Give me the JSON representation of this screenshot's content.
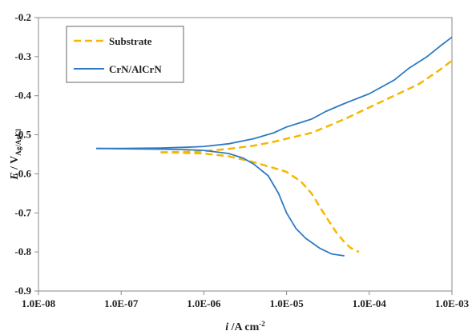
{
  "chart_data": {
    "type": "line",
    "xscale": "log",
    "xlim": [
      1e-08,
      0.001
    ],
    "ylim": [
      -0.9,
      -0.2
    ],
    "grid": false,
    "legend_position": "top-left",
    "x_tick_labels": [
      "1.0E-08",
      "1.0E-07",
      "1.0E-06",
      "1.0E-05",
      "1.0E-04",
      "1.0E-03"
    ],
    "y_tick_labels": [
      "-0.2",
      "-0.3",
      "-0.4",
      "-0.5",
      "-0.6",
      "-0.7",
      "-0.8",
      "-0.9"
    ],
    "xlabel": {
      "italic": "i",
      "rest": " /A cm",
      "sup": "-2"
    },
    "ylabel": {
      "italic": "E",
      "rest": " / V",
      "sub": "Ag/AgCl"
    },
    "series": [
      {
        "name": "Substrate",
        "color": "#F5B800",
        "dash": true,
        "anodic": [
          [
            3e-07,
            -0.545
          ],
          [
            5e-07,
            -0.544
          ],
          [
            1e-06,
            -0.542
          ],
          [
            2e-06,
            -0.536
          ],
          [
            4e-06,
            -0.528
          ],
          [
            7e-06,
            -0.518
          ],
          [
            1e-05,
            -0.51
          ],
          [
            2e-05,
            -0.495
          ],
          [
            3e-05,
            -0.48
          ],
          [
            5e-05,
            -0.46
          ],
          [
            0.0001,
            -0.43
          ],
          [
            0.0002,
            -0.4
          ],
          [
            0.0004,
            -0.37
          ],
          [
            0.0007,
            -0.335
          ],
          [
            0.001,
            -0.31
          ]
        ],
        "cathodic": [
          [
            3e-07,
            -0.545
          ],
          [
            5e-07,
            -0.546
          ],
          [
            1e-06,
            -0.548
          ],
          [
            2e-06,
            -0.555
          ],
          [
            4e-06,
            -0.57
          ],
          [
            7e-06,
            -0.585
          ],
          [
            1e-05,
            -0.595
          ],
          [
            1.5e-05,
            -0.62
          ],
          [
            2e-05,
            -0.65
          ],
          [
            3e-05,
            -0.71
          ],
          [
            4e-05,
            -0.75
          ],
          [
            5e-05,
            -0.775
          ],
          [
            6e-05,
            -0.79
          ],
          [
            7.5e-05,
            -0.8
          ]
        ]
      },
      {
        "name": "CrN/AlCrN",
        "color": "#2E7BC4",
        "dash": false,
        "anodic": [
          [
            5e-08,
            -0.535
          ],
          [
            1e-07,
            -0.535
          ],
          [
            3e-07,
            -0.534
          ],
          [
            6e-07,
            -0.532
          ],
          [
            1e-06,
            -0.53
          ],
          [
            2e-06,
            -0.523
          ],
          [
            4e-06,
            -0.51
          ],
          [
            7e-06,
            -0.495
          ],
          [
            1e-05,
            -0.48
          ],
          [
            2e-05,
            -0.46
          ],
          [
            3e-05,
            -0.44
          ],
          [
            5e-05,
            -0.42
          ],
          [
            0.0001,
            -0.395
          ],
          [
            0.0002,
            -0.36
          ],
          [
            0.0003,
            -0.33
          ],
          [
            0.0005,
            -0.3
          ],
          [
            0.0007,
            -0.275
          ],
          [
            0.001,
            -0.25
          ]
        ],
        "cathodic": [
          [
            5e-08,
            -0.535
          ],
          [
            1e-07,
            -0.536
          ],
          [
            3e-07,
            -0.537
          ],
          [
            6e-07,
            -0.538
          ],
          [
            1e-06,
            -0.54
          ],
          [
            2e-06,
            -0.548
          ],
          [
            3e-06,
            -0.56
          ],
          [
            4e-06,
            -0.575
          ],
          [
            6e-06,
            -0.605
          ],
          [
            8e-06,
            -0.65
          ],
          [
            1e-05,
            -0.7
          ],
          [
            1.3e-05,
            -0.74
          ],
          [
            1.7e-05,
            -0.765
          ],
          [
            2.5e-05,
            -0.79
          ],
          [
            3.5e-05,
            -0.805
          ],
          [
            5e-05,
            -0.81
          ]
        ]
      }
    ]
  }
}
